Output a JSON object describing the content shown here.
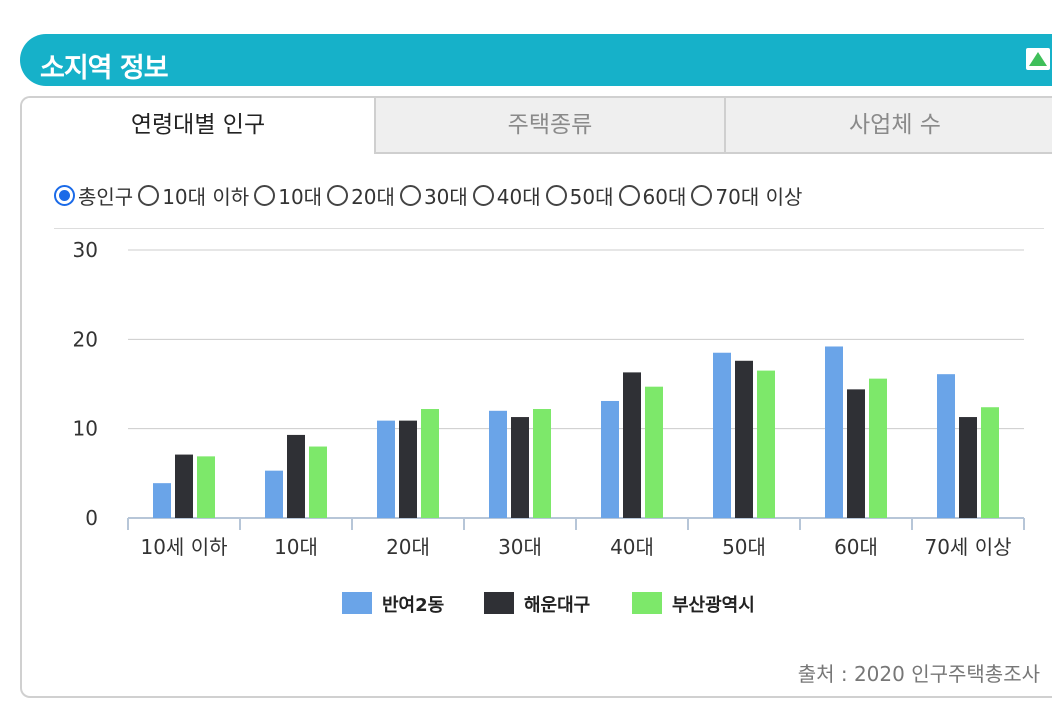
{
  "header": {
    "title": "소지역 정보"
  },
  "tabs": [
    {
      "label": "연령대별 인구"
    },
    {
      "label": "주택종류"
    },
    {
      "label": "사업체 수"
    }
  ],
  "age_filter": {
    "selected": "총인구",
    "options": [
      "총인구",
      "10대 이하",
      "10대",
      "20대",
      "30대",
      "40대",
      "50대",
      "60대",
      "70대 이상"
    ]
  },
  "colors": {
    "header": "#16b1c9",
    "series1": "#6aa4e8",
    "series2": "#2f3035",
    "series3": "#7de86a",
    "radio": "#1a6ae8"
  },
  "chart_data": {
    "type": "bar",
    "categories": [
      "10세 이하",
      "10대",
      "20대",
      "30대",
      "40대",
      "50대",
      "60대",
      "70세 이상"
    ],
    "series": [
      {
        "name": "반여2동",
        "values": [
          3.9,
          5.3,
          10.9,
          12.0,
          13.1,
          18.5,
          19.2,
          16.1
        ]
      },
      {
        "name": "해운대구",
        "values": [
          7.1,
          9.3,
          10.9,
          11.3,
          16.3,
          17.6,
          14.4,
          11.3
        ]
      },
      {
        "name": "부산광역시",
        "values": [
          6.9,
          8.0,
          12.2,
          12.2,
          14.7,
          16.5,
          15.6,
          12.4
        ]
      }
    ],
    "yticks": [
      0,
      10,
      20,
      30
    ],
    "ylim": [
      0,
      30
    ],
    "grid": true,
    "legend": "bottom"
  },
  "source": {
    "text": "출처 : 2020 인구주택총조사"
  }
}
